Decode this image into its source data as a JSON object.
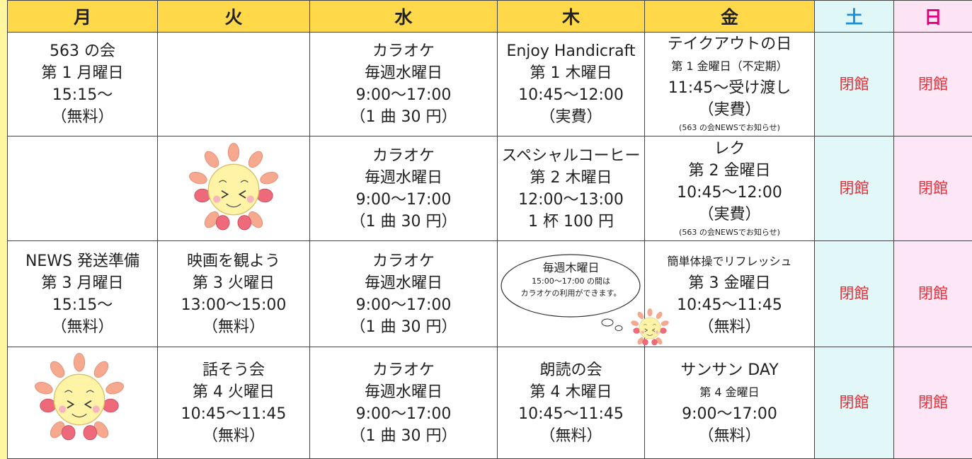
{
  "header": [
    "月",
    "火",
    "水",
    "木",
    "金",
    "土",
    "日"
  ],
  "rows": [
    [
      {
        "lines": [
          "563 の会",
          "第 1 月曜日",
          "15:15～",
          "（無料）"
        ]
      },
      {
        "lines": []
      },
      {
        "lines": [
          "カラオケ",
          "毎週水曜日",
          "9:00～17:00",
          "（1 曲 30 円）"
        ]
      },
      {
        "lines": [
          "Enjoy Handicraft",
          "第 1 木曜日",
          "10:45～12:00",
          "（実費）"
        ]
      },
      {
        "lines": [
          "テイクアウトの日",
          "第 1 金曜日（不定期）",
          "11:45～受け渡し",
          "（実費）"
        ],
        "note": "(563 の会NEWSでお知らせ)"
      },
      {
        "lines": [
          "閉館"
        ]
      },
      {
        "lines": [
          "閉館"
        ]
      }
    ],
    [
      {
        "lines": []
      },
      {
        "lines": []
      },
      {
        "lines": [
          "カラオケ",
          "毎週水曜日",
          "9:00～17:00",
          "（1 曲 30 円）"
        ]
      },
      {
        "lines": [
          "スペシャルコーヒー",
          "第 2 木曜日",
          "12:00～13:00",
          "1 杯 100 円"
        ]
      },
      {
        "lines": [
          "レク",
          "第 2 金曜日",
          "10:45～12:00",
          "（実費）"
        ],
        "note": "(563 の会NEWSでお知らせ)"
      },
      {
        "lines": [
          "閉館"
        ]
      },
      {
        "lines": [
          "閉館"
        ]
      }
    ],
    [
      {
        "lines": [
          "NEWS 発送準備",
          "第 3 月曜日",
          "15:15～",
          "（無料）"
        ]
      },
      {
        "lines": [
          "映画を観よう",
          "第 3 火曜日",
          "13:00～15:00",
          "（無料）"
        ]
      },
      {
        "lines": [
          "カラオケ",
          "毎週水曜日",
          "9:00～17:00",
          "（1 曲 30 円）"
        ]
      },
      {
        "bubble": [
          "毎週木曜日",
          "15:00～17:00 の間は",
          "カラオケの利用ができます。"
        ]
      },
      {
        "lines": [
          "簡単体操でリフレッシュ",
          "第 3 金曜日",
          "10:45～11:45",
          "（無料）"
        ]
      },
      {
        "lines": [
          "閉館"
        ]
      },
      {
        "lines": [
          "閉館"
        ]
      }
    ],
    [
      {
        "lines": []
      },
      {
        "lines": [
          "話そう会",
          "第 4 火曜日",
          "10:45～11:45",
          "（無料）"
        ]
      },
      {
        "lines": [
          "カラオケ",
          "毎週水曜日",
          "9:00～17:00",
          "（1 曲 30 円）"
        ]
      },
      {
        "lines": [
          "朗読の会",
          "第 4 木曜日",
          "10:45～11:45",
          "（無料）"
        ]
      },
      {
        "lines": [
          "サンサン DAY",
          "第 4 金曜日",
          "9:00～17:00",
          "（無料）"
        ]
      },
      {
        "lines": [
          "閉館"
        ]
      },
      {
        "lines": [
          "閉館"
        ]
      }
    ]
  ]
}
